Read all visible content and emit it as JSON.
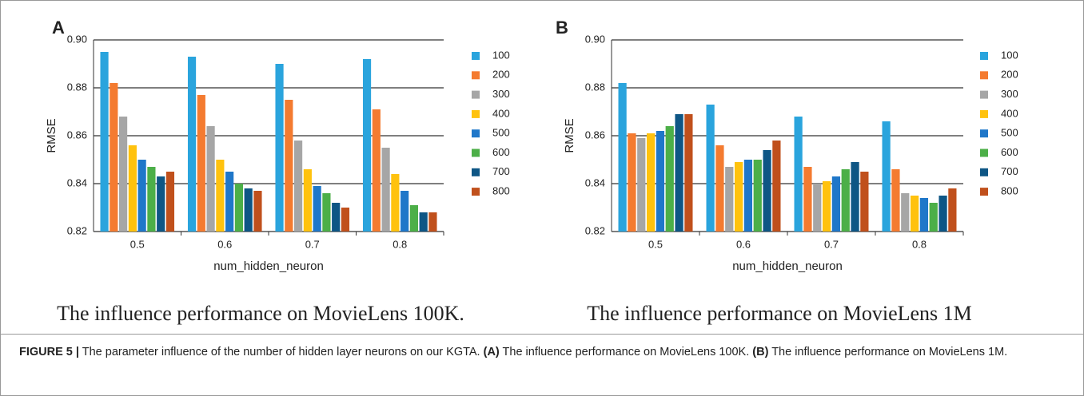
{
  "chart_data": [
    {
      "type": "bar",
      "panel": "A",
      "caption": "The influence performance on MovieLens 100K.",
      "xlabel": "num_hidden_neuron",
      "ylabel": "RMSE",
      "categories": [
        "0.5",
        "0.6",
        "0.7",
        "0.8"
      ],
      "ylim": [
        0.82,
        0.9
      ],
      "yticks": [
        {
          "value": 0.82,
          "label": "0.82"
        },
        {
          "value": 0.84,
          "label": "0.84"
        },
        {
          "value": 0.86,
          "label": "0.86"
        },
        {
          "value": 0.88,
          "label": "0.88"
        },
        {
          "value": 0.9,
          "label": "0.90"
        }
      ],
      "grid": true,
      "legend": "right",
      "series": [
        {
          "name": "100",
          "color": "#2aa4dd",
          "values": [
            0.895,
            0.893,
            0.89,
            0.892
          ]
        },
        {
          "name": "200",
          "color": "#f47b30",
          "values": [
            0.882,
            0.877,
            0.875,
            0.871
          ]
        },
        {
          "name": "300",
          "color": "#a6a6a6",
          "values": [
            0.868,
            0.864,
            0.858,
            0.855
          ]
        },
        {
          "name": "400",
          "color": "#ffc20e",
          "values": [
            0.856,
            0.85,
            0.846,
            0.844
          ]
        },
        {
          "name": "500",
          "color": "#1f77c9",
          "values": [
            0.85,
            0.845,
            0.839,
            0.837
          ]
        },
        {
          "name": "600",
          "color": "#4caf48",
          "values": [
            0.847,
            0.84,
            0.836,
            0.831
          ]
        },
        {
          "name": "700",
          "color": "#0e5685",
          "values": [
            0.843,
            0.838,
            0.832,
            0.828
          ]
        },
        {
          "name": "800",
          "color": "#c0501c",
          "values": [
            0.845,
            0.837,
            0.83,
            0.828
          ]
        }
      ]
    },
    {
      "type": "bar",
      "panel": "B",
      "caption": "The influence performance on MovieLens 1M",
      "xlabel": "num_hidden_neuron",
      "ylabel": "RMSE",
      "categories": [
        "0.5",
        "0.6",
        "0.7",
        "0.8"
      ],
      "ylim": [
        0.82,
        0.9
      ],
      "yticks": [
        {
          "value": 0.82,
          "label": "0.82"
        },
        {
          "value": 0.84,
          "label": "0.84"
        },
        {
          "value": 0.86,
          "label": "0.86"
        },
        {
          "value": 0.88,
          "label": "0.88"
        },
        {
          "value": 0.9,
          "label": "0.90"
        }
      ],
      "grid": true,
      "legend": "right",
      "series": [
        {
          "name": "100",
          "color": "#2aa4dd",
          "values": [
            0.882,
            0.873,
            0.868,
            0.866
          ]
        },
        {
          "name": "200",
          "color": "#f47b30",
          "values": [
            0.861,
            0.856,
            0.847,
            0.846
          ]
        },
        {
          "name": "300",
          "color": "#a6a6a6",
          "values": [
            0.859,
            0.847,
            0.84,
            0.836
          ]
        },
        {
          "name": "400",
          "color": "#ffc20e",
          "values": [
            0.861,
            0.849,
            0.841,
            0.835
          ]
        },
        {
          "name": "500",
          "color": "#1f77c9",
          "values": [
            0.862,
            0.85,
            0.843,
            0.834
          ]
        },
        {
          "name": "600",
          "color": "#4caf48",
          "values": [
            0.864,
            0.85,
            0.846,
            0.832
          ]
        },
        {
          "name": "700",
          "color": "#0e5685",
          "values": [
            0.869,
            0.854,
            0.849,
            0.835
          ]
        },
        {
          "name": "800",
          "color": "#c0501c",
          "values": [
            0.869,
            0.858,
            0.845,
            0.838
          ]
        }
      ]
    }
  ],
  "figure_caption": [
    {
      "text": "FIGURE 5 |",
      "bold": true
    },
    {
      "text": " The parameter influence of the number of hidden layer neurons on our KGTA. ",
      "bold": false
    },
    {
      "text": "(A)",
      "bold": true
    },
    {
      "text": " The influence performance on MovieLens 100K. ",
      "bold": false
    },
    {
      "text": "(B)",
      "bold": true
    },
    {
      "text": " The influence performance on MovieLens 1M.",
      "bold": false
    }
  ]
}
